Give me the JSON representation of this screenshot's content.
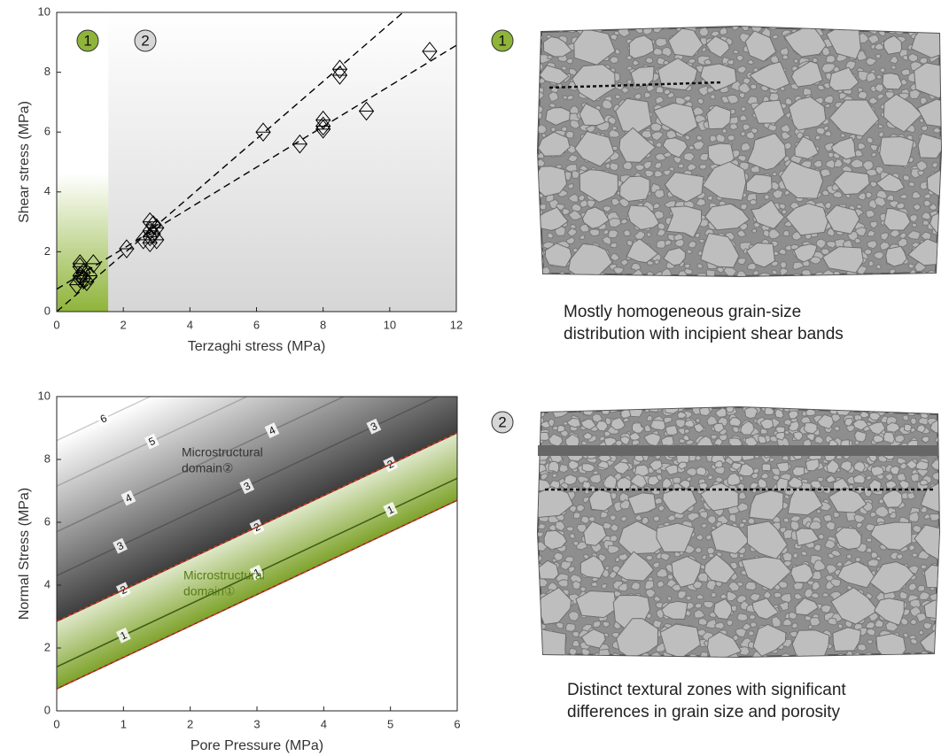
{
  "chart_data": [
    {
      "type": "scatter",
      "xlabel": "Terzaghi stress (MPa)",
      "ylabel": "Shear stress (MPa)",
      "xlim": [
        0,
        12
      ],
      "ylim": [
        0,
        10
      ],
      "xticks": [
        0,
        2,
        4,
        6,
        8,
        10,
        12
      ],
      "yticks": [
        0,
        2,
        4,
        6,
        8,
        10
      ],
      "regions": [
        {
          "label": "1",
          "x": [
            0,
            1.55
          ],
          "y": [
            0,
            4.6
          ],
          "color": "#8fb43a"
        },
        {
          "label": "2",
          "x": [
            1.55,
            12
          ],
          "y": [
            0,
            10
          ],
          "color": "#d6d6d6"
        }
      ],
      "series": [
        {
          "marker": "diamond",
          "color": "#000000",
          "x": [
            0.6,
            0.7,
            0.7,
            0.7,
            0.8,
            0.9,
            1.0,
            1.1,
            0.7,
            0.8,
            2.1,
            2.6,
            2.8,
            2.8,
            2.8,
            2.9,
            2.9,
            3.0,
            3.0,
            2.8,
            6.2,
            7.3,
            8.0,
            8.0,
            8.0,
            8.5,
            8.5,
            9.3,
            11.2
          ],
          "values": [
            0.9,
            1.1,
            1.2,
            1.5,
            1.3,
            1.0,
            1.2,
            1.6,
            1.6,
            1.1,
            2.1,
            2.4,
            2.3,
            2.5,
            2.7,
            2.9,
            2.6,
            2.8,
            2.4,
            3.0,
            6.0,
            5.6,
            6.1,
            6.2,
            6.4,
            7.9,
            8.1,
            6.7,
            8.7
          ]
        },
        {
          "line": "dashed",
          "color": "#000000",
          "x": [
            0,
            10.4
          ],
          "values": [
            0,
            10
          ]
        },
        {
          "line": "dashed",
          "color": "#000000",
          "x": [
            0,
            12
          ],
          "values": [
            0.75,
            8.9
          ]
        }
      ]
    },
    {
      "type": "contour",
      "xlabel": "Pore Pressure (MPa)",
      "ylabel": "Normal Stress (MPa)",
      "xlim": [
        0,
        6
      ],
      "ylim": [
        0,
        10
      ],
      "xticks": [
        0,
        1,
        2,
        3,
        4,
        5,
        6
      ],
      "yticks": [
        0,
        2,
        4,
        6,
        8,
        10
      ],
      "zone_colors": [
        "#7ea32b",
        "#3f3f3f"
      ],
      "boundary_color": "#d9342b",
      "boundaries": [
        {
          "x": [
            0,
            6
          ],
          "values": [
            2.85,
            8.85
          ]
        },
        {
          "x": [
            0,
            6
          ],
          "values": [
            0.7,
            6.7
          ]
        }
      ],
      "contours": [
        {
          "level": 1,
          "color": "#3d5a14",
          "x": [
            0,
            6
          ],
          "values": [
            1.4,
            7.4
          ]
        },
        {
          "level": 2,
          "color": "#333333",
          "x": [
            0,
            6
          ],
          "values": [
            2.85,
            8.85
          ]
        },
        {
          "level": 3,
          "color": "#555555",
          "x": [
            0,
            5.7
          ],
          "values": [
            4.3,
            10
          ]
        },
        {
          "level": 4,
          "color": "#7a7a7a",
          "x": [
            0,
            4.3
          ],
          "values": [
            5.7,
            10
          ]
        },
        {
          "level": 5,
          "color": "#a8a8a8",
          "x": [
            0,
            2.85
          ],
          "values": [
            7.15,
            10
          ]
        },
        {
          "level": 6,
          "color": "#cccccc",
          "x": [
            0,
            1.4
          ],
          "values": [
            8.6,
            10
          ]
        }
      ],
      "annotations": [
        {
          "lines": [
            "Microstructural",
            "domain②"
          ],
          "color": "#333333"
        },
        {
          "lines": [
            "Microstructural",
            "domain①"
          ],
          "color": "#557d16"
        }
      ]
    }
  ],
  "panels": [
    {
      "badge": "1",
      "caption": [
        "Mostly homogeneous grain-size",
        "distribution with incipient shear bands"
      ]
    },
    {
      "badge": "2",
      "caption": [
        "Distinct textural zones with significant",
        "differences in grain size and porosity"
      ]
    }
  ]
}
